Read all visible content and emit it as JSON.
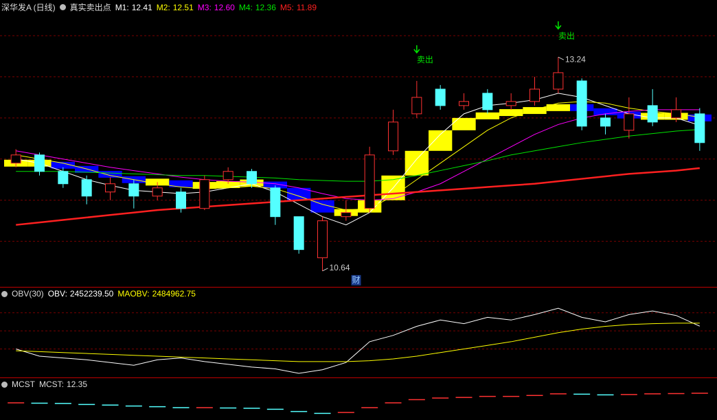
{
  "chart_data": [
    {
      "type": "candlestick",
      "title": "深华发A (日线)",
      "indicator": {
        "name": "真实卖出点",
        "values": [
          11.95,
          11.95,
          11.9,
          11.85,
          11.78,
          11.72,
          11.72,
          11.68,
          11.68,
          11.7,
          11.72,
          11.65,
          11.5,
          11.35,
          11.35,
          11.5,
          11.8,
          12.1,
          12.35,
          12.5,
          12.55,
          12.58,
          12.6,
          12.65,
          12.6,
          12.55,
          12.52,
          12.52,
          12.52,
          12.48
        ],
        "rise_color": "#ffff00",
        "fall_color": "#0000ff"
      },
      "open": [
        11.95,
        12.05,
        11.85,
        11.75,
        11.6,
        11.7,
        11.55,
        11.6,
        11.4,
        11.75,
        11.85,
        11.65,
        11.3,
        10.8,
        11.3,
        11.4,
        12.1,
        12.55,
        12.85,
        12.65,
        12.8,
        12.65,
        12.7,
        12.85,
        12.95,
        12.5,
        12.35,
        12.65,
        12.5,
        12.55
      ],
      "high": [
        12.12,
        12.08,
        11.9,
        11.8,
        11.78,
        11.75,
        11.72,
        11.65,
        11.8,
        11.9,
        11.88,
        11.68,
        11.3,
        11.3,
        11.5,
        12.15,
        12.6,
        12.95,
        12.9,
        12.8,
        12.85,
        12.8,
        13.0,
        13.24,
        12.98,
        12.55,
        12.75,
        12.85,
        12.75,
        12.62
      ],
      "low": [
        11.9,
        11.8,
        11.65,
        11.45,
        11.5,
        11.4,
        11.5,
        11.35,
        11.38,
        11.7,
        11.65,
        11.2,
        10.85,
        10.64,
        11.25,
        11.35,
        12.05,
        12.5,
        12.6,
        12.6,
        12.55,
        12.6,
        12.65,
        12.8,
        12.35,
        12.3,
        12.25,
        12.4,
        12.45,
        12.1
      ],
      "close": [
        12.05,
        11.85,
        11.7,
        11.55,
        11.7,
        11.55,
        11.65,
        11.4,
        11.75,
        11.85,
        11.7,
        11.3,
        10.9,
        11.25,
        11.35,
        12.05,
        12.45,
        12.75,
        12.65,
        12.7,
        12.6,
        12.7,
        12.85,
        13.05,
        12.4,
        12.4,
        12.55,
        12.45,
        12.6,
        12.2
      ],
      "up_color": "#ff3232",
      "down_color": "#54ffff",
      "series": [
        {
          "name": "M1:",
          "color": "#ffffff",
          "readout": 12.41,
          "values": [
            12.0,
            11.95,
            11.85,
            11.75,
            11.68,
            11.62,
            11.6,
            11.58,
            11.6,
            11.65,
            11.7,
            11.6,
            11.45,
            11.3,
            11.2,
            11.35,
            11.65,
            12.0,
            12.3,
            12.55,
            12.65,
            12.68,
            12.72,
            12.8,
            12.75,
            12.65,
            12.55,
            12.5,
            12.5,
            12.41
          ]
        },
        {
          "name": "M2:",
          "color": "#ffff00",
          "readout": 12.51,
          "values": [
            12.05,
            12.0,
            11.95,
            11.88,
            11.8,
            11.75,
            11.7,
            11.66,
            11.64,
            11.65,
            11.67,
            11.64,
            11.55,
            11.45,
            11.38,
            11.4,
            11.55,
            11.75,
            11.95,
            12.15,
            12.35,
            12.5,
            12.6,
            12.68,
            12.7,
            12.68,
            12.62,
            12.58,
            12.55,
            12.51
          ]
        },
        {
          "name": "M3:",
          "color": "#ff00ff",
          "readout": {
            "value": 12.6,
            "label": "12.60"
          },
          "values": [
            12.1,
            12.05,
            12.0,
            11.95,
            11.9,
            11.86,
            11.82,
            11.78,
            11.75,
            11.73,
            11.72,
            11.7,
            11.65,
            11.58,
            11.52,
            11.5,
            11.52,
            11.6,
            11.7,
            11.85,
            12.0,
            12.15,
            12.3,
            12.42,
            12.5,
            12.55,
            12.58,
            12.6,
            12.6,
            12.6
          ]
        },
        {
          "name": "M4:",
          "color": "#00e600",
          "readout": 12.36,
          "values": [
            11.85,
            11.85,
            11.85,
            11.84,
            11.83,
            11.82,
            11.81,
            11.8,
            11.8,
            11.79,
            11.78,
            11.77,
            11.75,
            11.74,
            11.73,
            11.73,
            11.75,
            11.8,
            11.86,
            11.92,
            11.98,
            12.05,
            12.1,
            12.15,
            12.2,
            12.24,
            12.28,
            12.31,
            12.34,
            12.36
          ]
        },
        {
          "name": "M5:",
          "color": "#ff2020",
          "readout": 11.89,
          "width": 2.5,
          "values": [
            11.2,
            11.23,
            11.26,
            11.29,
            11.32,
            11.35,
            11.38,
            11.4,
            11.42,
            11.44,
            11.46,
            11.48,
            11.5,
            11.52,
            11.54,
            11.56,
            11.58,
            11.6,
            11.62,
            11.64,
            11.66,
            11.68,
            11.7,
            11.73,
            11.76,
            11.79,
            11.82,
            11.84,
            11.86,
            11.89
          ]
        }
      ],
      "signals": [
        null,
        null,
        null,
        null,
        null,
        null,
        null,
        null,
        null,
        null,
        null,
        null,
        null,
        null,
        null,
        null,
        null,
        "卖出",
        null,
        null,
        null,
        null,
        null,
        "卖出",
        null,
        null,
        null,
        null,
        null,
        null
      ],
      "signal_color": "#00e600",
      "events": [
        null,
        null,
        null,
        null,
        null,
        null,
        null,
        null,
        null,
        null,
        null,
        null,
        null,
        "财",
        null,
        null,
        null,
        null,
        null,
        null,
        null,
        null,
        null,
        null,
        null,
        null,
        null,
        null,
        null,
        null
      ],
      "ylim": [
        10.48,
        13.75
      ],
      "yticks": [
        11,
        11.5,
        12,
        12.5,
        13,
        13.5
      ],
      "grid": true
    },
    {
      "type": "line",
      "title": "OBV(30)",
      "series": [
        {
          "name": "OBV:",
          "color": "#ffffff",
          "readout": {
            "value": 2452239.5,
            "label": "2452239.50"
          },
          "values": [
            2200000,
            2120000,
            2100000,
            2080000,
            2050000,
            2020000,
            2080000,
            2100000,
            2060000,
            2030000,
            2000000,
            1980000,
            1930000,
            1970000,
            2050000,
            2280000,
            2350000,
            2450000,
            2520000,
            2480000,
            2550000,
            2520000,
            2580000,
            2650000,
            2550000,
            2500000,
            2580000,
            2620000,
            2570000,
            2452239.5
          ]
        },
        {
          "name": "MAOBV:",
          "color": "#ffff00",
          "readout": {
            "value": 2484962.75,
            "label": "2484962.75"
          },
          "values": [
            2180000,
            2170000,
            2160000,
            2150000,
            2140000,
            2130000,
            2120000,
            2110000,
            2100000,
            2090000,
            2080000,
            2070000,
            2060000,
            2060000,
            2060000,
            2070000,
            2090000,
            2120000,
            2160000,
            2200000,
            2240000,
            2280000,
            2330000,
            2380000,
            2420000,
            2450000,
            2470000,
            2480000,
            2485000,
            2484962.75
          ]
        }
      ],
      "ylim": [
        1900000,
        2750000
      ],
      "yticks": [
        2200000,
        2400000,
        2600000
      ],
      "grid": true
    },
    {
      "type": "step",
      "title": "MCST",
      "series": [
        {
          "name": "MCST:",
          "readout": 12.35,
          "up_color": "#ff3232",
          "down_color": "#54ffff",
          "values": [
            12.05,
            12.04,
            12.03,
            12.0,
            11.98,
            11.95,
            11.93,
            11.9,
            11.9,
            11.89,
            11.88,
            11.85,
            11.78,
            11.72,
            11.75,
            11.9,
            12.05,
            12.15,
            12.2,
            12.22,
            12.25,
            12.25,
            12.28,
            12.33,
            12.32,
            12.3,
            12.31,
            12.33,
            12.34,
            12.35
          ]
        }
      ],
      "ylim": [
        11.6,
        12.5
      ]
    }
  ]
}
